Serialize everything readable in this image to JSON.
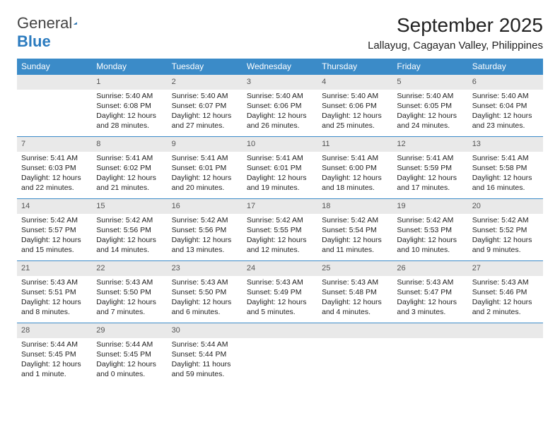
{
  "logo": {
    "text1": "General",
    "text2": "Blue"
  },
  "title": "September 2025",
  "subtitle": "Lallayug, Cagayan Valley, Philippines",
  "colors": {
    "header_bg": "#3b8bc8",
    "header_text": "#ffffff",
    "daynum_bg": "#e9e9e9",
    "border": "#3b8bc8",
    "logo_blue": "#2b7bbf",
    "page_bg": "#ffffff",
    "text": "#222222"
  },
  "weekdays": [
    "Sunday",
    "Monday",
    "Tuesday",
    "Wednesday",
    "Thursday",
    "Friday",
    "Saturday"
  ],
  "weeks": [
    [
      {
        "empty": true
      },
      {
        "num": "1",
        "sunrise": "Sunrise: 5:40 AM",
        "sunset": "Sunset: 6:08 PM",
        "daylight": "Daylight: 12 hours and 28 minutes."
      },
      {
        "num": "2",
        "sunrise": "Sunrise: 5:40 AM",
        "sunset": "Sunset: 6:07 PM",
        "daylight": "Daylight: 12 hours and 27 minutes."
      },
      {
        "num": "3",
        "sunrise": "Sunrise: 5:40 AM",
        "sunset": "Sunset: 6:06 PM",
        "daylight": "Daylight: 12 hours and 26 minutes."
      },
      {
        "num": "4",
        "sunrise": "Sunrise: 5:40 AM",
        "sunset": "Sunset: 6:06 PM",
        "daylight": "Daylight: 12 hours and 25 minutes."
      },
      {
        "num": "5",
        "sunrise": "Sunrise: 5:40 AM",
        "sunset": "Sunset: 6:05 PM",
        "daylight": "Daylight: 12 hours and 24 minutes."
      },
      {
        "num": "6",
        "sunrise": "Sunrise: 5:40 AM",
        "sunset": "Sunset: 6:04 PM",
        "daylight": "Daylight: 12 hours and 23 minutes."
      }
    ],
    [
      {
        "num": "7",
        "sunrise": "Sunrise: 5:41 AM",
        "sunset": "Sunset: 6:03 PM",
        "daylight": "Daylight: 12 hours and 22 minutes."
      },
      {
        "num": "8",
        "sunrise": "Sunrise: 5:41 AM",
        "sunset": "Sunset: 6:02 PM",
        "daylight": "Daylight: 12 hours and 21 minutes."
      },
      {
        "num": "9",
        "sunrise": "Sunrise: 5:41 AM",
        "sunset": "Sunset: 6:01 PM",
        "daylight": "Daylight: 12 hours and 20 minutes."
      },
      {
        "num": "10",
        "sunrise": "Sunrise: 5:41 AM",
        "sunset": "Sunset: 6:01 PM",
        "daylight": "Daylight: 12 hours and 19 minutes."
      },
      {
        "num": "11",
        "sunrise": "Sunrise: 5:41 AM",
        "sunset": "Sunset: 6:00 PM",
        "daylight": "Daylight: 12 hours and 18 minutes."
      },
      {
        "num": "12",
        "sunrise": "Sunrise: 5:41 AM",
        "sunset": "Sunset: 5:59 PM",
        "daylight": "Daylight: 12 hours and 17 minutes."
      },
      {
        "num": "13",
        "sunrise": "Sunrise: 5:41 AM",
        "sunset": "Sunset: 5:58 PM",
        "daylight": "Daylight: 12 hours and 16 minutes."
      }
    ],
    [
      {
        "num": "14",
        "sunrise": "Sunrise: 5:42 AM",
        "sunset": "Sunset: 5:57 PM",
        "daylight": "Daylight: 12 hours and 15 minutes."
      },
      {
        "num": "15",
        "sunrise": "Sunrise: 5:42 AM",
        "sunset": "Sunset: 5:56 PM",
        "daylight": "Daylight: 12 hours and 14 minutes."
      },
      {
        "num": "16",
        "sunrise": "Sunrise: 5:42 AM",
        "sunset": "Sunset: 5:56 PM",
        "daylight": "Daylight: 12 hours and 13 minutes."
      },
      {
        "num": "17",
        "sunrise": "Sunrise: 5:42 AM",
        "sunset": "Sunset: 5:55 PM",
        "daylight": "Daylight: 12 hours and 12 minutes."
      },
      {
        "num": "18",
        "sunrise": "Sunrise: 5:42 AM",
        "sunset": "Sunset: 5:54 PM",
        "daylight": "Daylight: 12 hours and 11 minutes."
      },
      {
        "num": "19",
        "sunrise": "Sunrise: 5:42 AM",
        "sunset": "Sunset: 5:53 PM",
        "daylight": "Daylight: 12 hours and 10 minutes."
      },
      {
        "num": "20",
        "sunrise": "Sunrise: 5:42 AM",
        "sunset": "Sunset: 5:52 PM",
        "daylight": "Daylight: 12 hours and 9 minutes."
      }
    ],
    [
      {
        "num": "21",
        "sunrise": "Sunrise: 5:43 AM",
        "sunset": "Sunset: 5:51 PM",
        "daylight": "Daylight: 12 hours and 8 minutes."
      },
      {
        "num": "22",
        "sunrise": "Sunrise: 5:43 AM",
        "sunset": "Sunset: 5:50 PM",
        "daylight": "Daylight: 12 hours and 7 minutes."
      },
      {
        "num": "23",
        "sunrise": "Sunrise: 5:43 AM",
        "sunset": "Sunset: 5:50 PM",
        "daylight": "Daylight: 12 hours and 6 minutes."
      },
      {
        "num": "24",
        "sunrise": "Sunrise: 5:43 AM",
        "sunset": "Sunset: 5:49 PM",
        "daylight": "Daylight: 12 hours and 5 minutes."
      },
      {
        "num": "25",
        "sunrise": "Sunrise: 5:43 AM",
        "sunset": "Sunset: 5:48 PM",
        "daylight": "Daylight: 12 hours and 4 minutes."
      },
      {
        "num": "26",
        "sunrise": "Sunrise: 5:43 AM",
        "sunset": "Sunset: 5:47 PM",
        "daylight": "Daylight: 12 hours and 3 minutes."
      },
      {
        "num": "27",
        "sunrise": "Sunrise: 5:43 AM",
        "sunset": "Sunset: 5:46 PM",
        "daylight": "Daylight: 12 hours and 2 minutes."
      }
    ],
    [
      {
        "num": "28",
        "sunrise": "Sunrise: 5:44 AM",
        "sunset": "Sunset: 5:45 PM",
        "daylight": "Daylight: 12 hours and 1 minute."
      },
      {
        "num": "29",
        "sunrise": "Sunrise: 5:44 AM",
        "sunset": "Sunset: 5:45 PM",
        "daylight": "Daylight: 12 hours and 0 minutes."
      },
      {
        "num": "30",
        "sunrise": "Sunrise: 5:44 AM",
        "sunset": "Sunset: 5:44 PM",
        "daylight": "Daylight: 11 hours and 59 minutes."
      },
      {
        "empty": true
      },
      {
        "empty": true
      },
      {
        "empty": true
      },
      {
        "empty": true
      }
    ]
  ]
}
